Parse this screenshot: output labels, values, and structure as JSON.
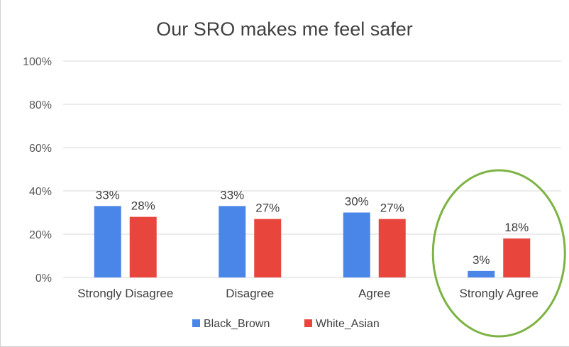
{
  "chart_data": {
    "type": "bar",
    "title": "Our SRO makes me feel safer",
    "categories": [
      "Strongly Disagree",
      "Disagree",
      "Agree",
      "Strongly Agree"
    ],
    "series": [
      {
        "name": "Black_Brown",
        "color": "#4a86e8",
        "values": [
          33,
          33,
          30,
          3
        ],
        "labels": [
          "33%",
          "33%",
          "30%",
          "3%"
        ]
      },
      {
        "name": "White_Asian",
        "color": "#e8453c",
        "values": [
          28,
          27,
          27,
          18
        ],
        "labels": [
          "28%",
          "27%",
          "27%",
          "18%"
        ]
      }
    ],
    "yticks": [
      "0%",
      "20%",
      "40%",
      "60%",
      "80%",
      "100%"
    ],
    "ytick_values": [
      0,
      20,
      40,
      60,
      80,
      100
    ],
    "ylim": [
      0,
      100
    ],
    "grid": true,
    "legend": "bottom",
    "highlight": {
      "category": "Strongly Agree",
      "shape": "ellipse",
      "color": "#7cb342"
    }
  }
}
